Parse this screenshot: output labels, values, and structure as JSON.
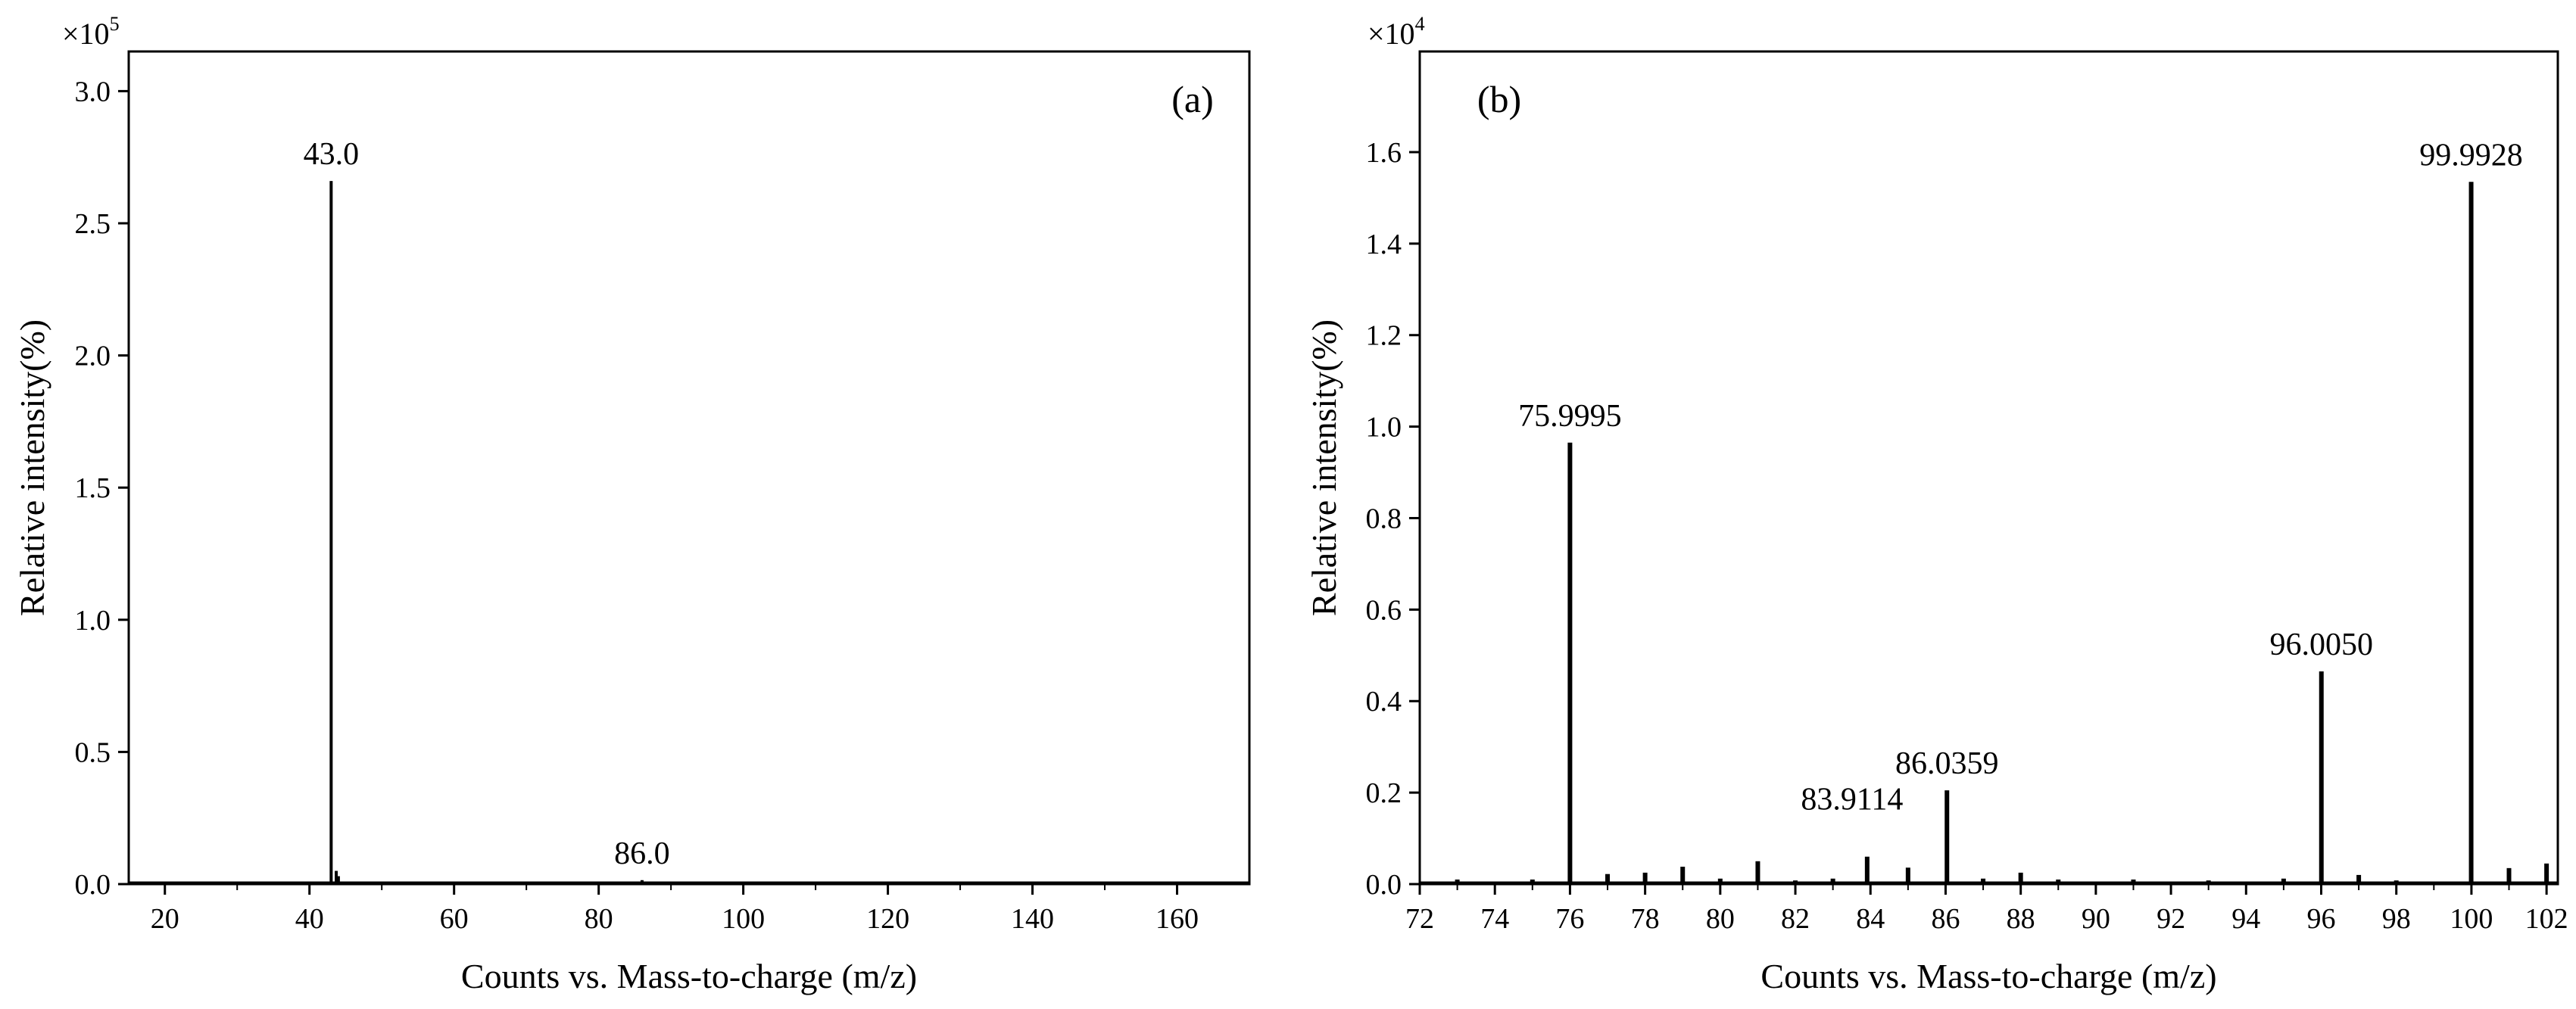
{
  "figure": {
    "background": "#ffffff",
    "ink": "#000000"
  },
  "chart_data": [
    {
      "type": "bar",
      "panel_label": "(a)",
      "xlabel": "Counts vs. Mass-to-charge (m/z)",
      "ylabel": "Relative intensity(%)",
      "y_multiplier": {
        "base": "×10",
        "exponent": "5"
      },
      "xlim": [
        15,
        170
      ],
      "ylim": [
        0,
        3.15
      ],
      "x_ticks": [
        20,
        40,
        60,
        80,
        100,
        120,
        140,
        160
      ],
      "x_tick_labels": [
        "20",
        "40",
        "60",
        "80",
        "100",
        "120",
        "140",
        "160"
      ],
      "y_ticks": [
        0,
        0.5,
        1.0,
        1.5,
        2.0,
        2.5,
        3.0
      ],
      "y_tick_labels": [
        "0.0",
        "0.5",
        "1.0",
        "1.5",
        "2.0",
        "2.5",
        "3.0"
      ],
      "grid": false,
      "peaks": [
        {
          "x": 43.0,
          "y": 2.66
        },
        {
          "x": 43.7,
          "y": 0.05
        },
        {
          "x": 44.0,
          "y": 0.03
        },
        {
          "x": 86.0,
          "y": 0.015
        }
      ],
      "annotations": [
        {
          "x": 43.0,
          "y": 2.66,
          "text": "43.0"
        },
        {
          "x": 86.0,
          "y": 0.015,
          "text": "86.0"
        }
      ]
    },
    {
      "type": "bar",
      "panel_label": "(b)",
      "xlabel": "Counts vs. Mass-to-charge (m/z)",
      "ylabel": "Relative intensity(%)",
      "y_multiplier": {
        "base": "×10",
        "exponent": "4"
      },
      "xlim": [
        72,
        102.3
      ],
      "ylim": [
        0,
        1.82
      ],
      "x_ticks": [
        72,
        74,
        76,
        78,
        80,
        82,
        84,
        86,
        88,
        90,
        92,
        94,
        96,
        98,
        100,
        102
      ],
      "x_tick_labels": [
        "72",
        "74",
        "76",
        "78",
        "80",
        "82",
        "84",
        "86",
        "88",
        "90",
        "92",
        "94",
        "96",
        "98",
        "100",
        "102"
      ],
      "y_ticks": [
        0,
        0.2,
        0.4,
        0.6,
        0.8,
        1.0,
        1.2,
        1.4,
        1.6
      ],
      "y_tick_labels": [
        "0.0",
        "0.2",
        "0.4",
        "0.6",
        "0.8",
        "1.0",
        "1.2",
        "1.4",
        "1.6"
      ],
      "grid": false,
      "peaks": [
        {
          "x": 73.0,
          "y": 0.01
        },
        {
          "x": 75.0,
          "y": 0.01
        },
        {
          "x": 75.9995,
          "y": 0.965
        },
        {
          "x": 77.0,
          "y": 0.022
        },
        {
          "x": 78.0,
          "y": 0.025
        },
        {
          "x": 79.0,
          "y": 0.038
        },
        {
          "x": 80.0,
          "y": 0.012
        },
        {
          "x": 81.0,
          "y": 0.05
        },
        {
          "x": 82.0,
          "y": 0.008
        },
        {
          "x": 83.0,
          "y": 0.012
        },
        {
          "x": 83.9114,
          "y": 0.06
        },
        {
          "x": 85.0,
          "y": 0.036
        },
        {
          "x": 86.0359,
          "y": 0.205
        },
        {
          "x": 87.0,
          "y": 0.012
        },
        {
          "x": 88.0,
          "y": 0.025
        },
        {
          "x": 89.0,
          "y": 0.01
        },
        {
          "x": 91.0,
          "y": 0.01
        },
        {
          "x": 93.0,
          "y": 0.008
        },
        {
          "x": 95.0,
          "y": 0.012
        },
        {
          "x": 96.005,
          "y": 0.465
        },
        {
          "x": 97.0,
          "y": 0.02
        },
        {
          "x": 98.0,
          "y": 0.008
        },
        {
          "x": 99.9928,
          "y": 1.535
        },
        {
          "x": 101.0,
          "y": 0.035
        },
        {
          "x": 102.0,
          "y": 0.045
        }
      ],
      "annotations": [
        {
          "x": 75.9995,
          "y": 0.965,
          "text": "75.9995"
        },
        {
          "x": 83.9114,
          "y": 0.06,
          "text": "83.9114"
        },
        {
          "x": 86.0359,
          "y": 0.205,
          "text": "86.0359"
        },
        {
          "x": 96.005,
          "y": 0.465,
          "text": "96.0050"
        },
        {
          "x": 99.9928,
          "y": 1.535,
          "text": "99.9928"
        }
      ]
    }
  ]
}
